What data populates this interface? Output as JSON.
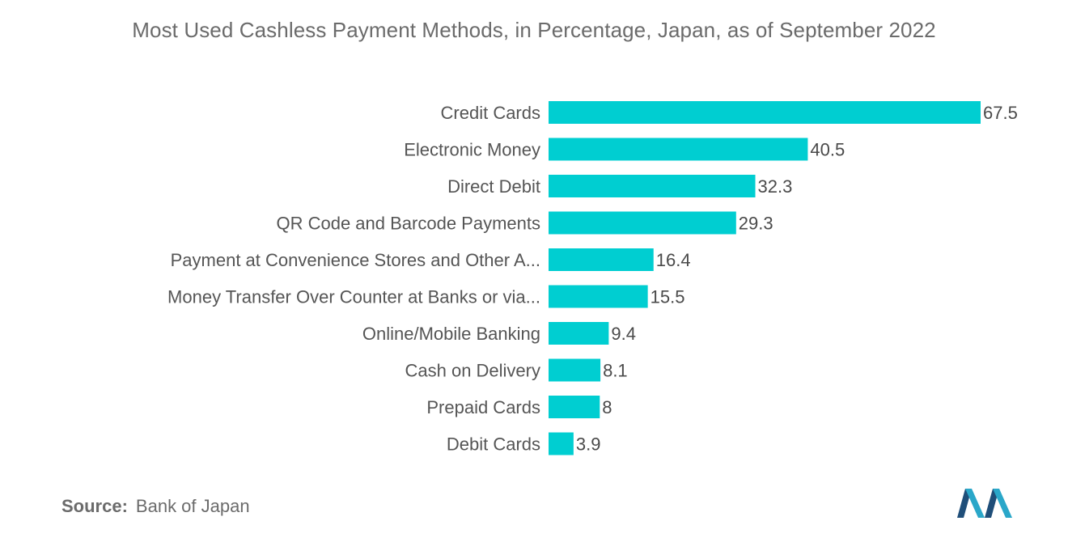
{
  "chart_data": {
    "type": "bar",
    "orientation": "horizontal",
    "title": "Most Used Cashless Payment Methods, in Percentage, Japan, as of September 2022",
    "categories": [
      "Credit Cards",
      "Electronic Money",
      "Direct Debit",
      "QR Code and Barcode Payments",
      "Payment at Convenience Stores and Other A...",
      "Money Transfer Over Counter at Banks or via...",
      "Online/Mobile Banking",
      "Cash on Delivery",
      "Prepaid Cards",
      "Debit Cards"
    ],
    "values": [
      67.5,
      40.5,
      32.3,
      29.3,
      16.4,
      15.5,
      9.4,
      8.1,
      8,
      3.9
    ],
    "value_labels": [
      "67.5",
      "40.5",
      "32.3",
      "29.3",
      "16.4",
      "15.5",
      "9.4",
      "8.1",
      "8",
      "3.9"
    ],
    "xlim": [
      0,
      67.5
    ],
    "bar_color": "#00CED1",
    "grid": false,
    "legend": "none"
  },
  "source": {
    "label": "Source:",
    "text": "Bank of Japan"
  },
  "logo": {
    "icon": "mordor-intelligence-logo-icon",
    "colors": [
      "#1f4e79",
      "#2aa7c9"
    ]
  }
}
